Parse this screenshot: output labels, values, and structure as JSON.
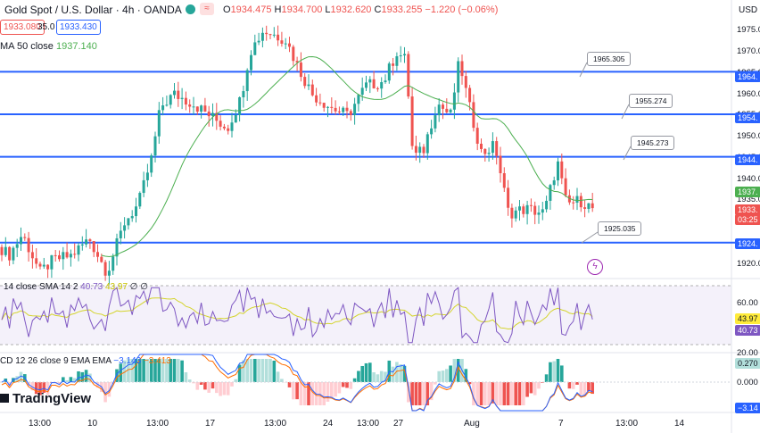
{
  "header": {
    "symbol": "Gold Spot / U.S. Dollar · 4h · OANDA",
    "o_label": "O",
    "o": "1934.475",
    "h_label": "H",
    "h": "1934.700",
    "l_label": "L",
    "l": "1932.620",
    "c_label": "C",
    "c": "1933.255",
    "change": "−1.220 (−0.06%)",
    "sell_price": "1933.080",
    "spread": "35.0",
    "buy_price": "1933.430",
    "ma_label": "MA 50 close",
    "ma_value": "1937.140",
    "currency": "USD"
  },
  "price_axis": {
    "ticks": [
      "1975.0",
      "1970.0",
      "1965.0",
      "1960.0",
      "1955.0",
      "1950.0",
      "1945.0",
      "1940.0",
      "1935.0",
      "1930.0",
      "1925.0",
      "1920.0"
    ],
    "tag_1964": "1964.",
    "tag_1954": "1954.",
    "tag_1944": "1944.",
    "tag_ma": "1937.",
    "tag_price": "1933.",
    "tag_timer": "03:25",
    "tag_1924": "1924."
  },
  "callouts": {
    "c1": "1965.305",
    "c2": "1955.274",
    "c3": "1945.273",
    "c4": "1925.035"
  },
  "rsi": {
    "label": "14 close SMA 14 2",
    "value_rsi": "40.73",
    "value_sma": "43.97",
    "zeros": "∅ ∅",
    "ticks": [
      "60.00",
      "20.00"
    ],
    "tag_sma": "43.97",
    "tag_rsi": "40.73"
  },
  "macd": {
    "label": "CD 12 26 close 9 EMA EMA",
    "v1": "−3.143",
    "v2": "−3.413",
    "tag_hist": "0.270",
    "tick_zero": "0.000",
    "tag_neg": "−3.14"
  },
  "time_axis": [
    "13:00",
    "10",
    "13:00",
    "17",
    "13:00",
    "24",
    "13:00",
    "27",
    "Aug",
    "7",
    "13:00",
    "14"
  ],
  "brand": "TradingView",
  "colors": {
    "up": "#26a69a",
    "down": "#ef5350",
    "hline": "#2962ff",
    "ma": "#4caf50",
    "rsi": "#7e57c2",
    "rsi_sma": "#d4d42c",
    "macd_line": "#2962ff",
    "signal_line": "#ff6d00"
  },
  "chart_data": {
    "type": "candlestick",
    "interval": "4h",
    "ma_period": 50,
    "horizontal_levels": [
      1965.305,
      1955.274,
      1945.273,
      1925.035
    ],
    "ylim": [
      1917,
      1978
    ],
    "rsi_range": [
      0,
      100
    ],
    "rsi_bands": [
      30,
      70
    ],
    "last_price": 1933.255,
    "ma_last": 1937.14,
    "rsi_last": 40.73,
    "rsi_sma_last": 43.97,
    "macd_last": -3.143,
    "signal_last": -3.413,
    "hist_last": 0.27
  }
}
